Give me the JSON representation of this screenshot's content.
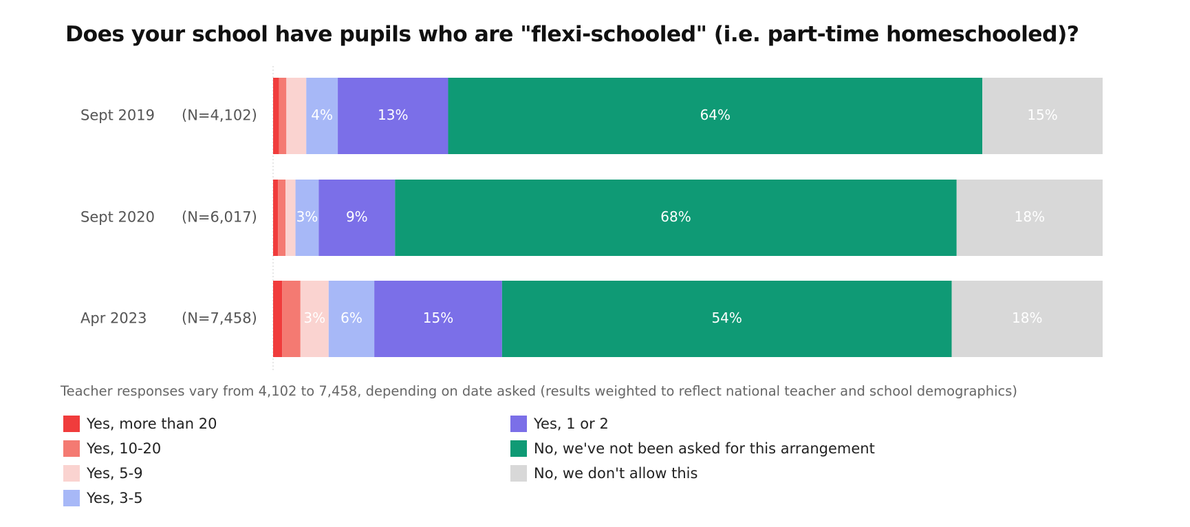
{
  "chart_data": {
    "type": "bar",
    "orientation": "horizontal",
    "stacked": true,
    "title": "Does your school have pupils who are \"flexi-schooled\" (i.e. part-time homeschooled)?",
    "note": "Teacher responses vary from 4,102 to 7,458, depending on date asked (results weighted to reflect national teacher and school demographics)",
    "categories": [
      "Sept 2019",
      "Sept 2020",
      "Apr 2023"
    ],
    "sample_sizes": [
      "(N=4,102)",
      "(N=6,017)",
      "(N=7,458)"
    ],
    "xlim": [
      0,
      100
    ],
    "grid": false,
    "legend_placement": "bottom",
    "series": [
      {
        "name": "Yes, more than 20",
        "color": "#f03c3c",
        "values": [
          0.7,
          0.6,
          1.1
        ],
        "labels": [
          "",
          "",
          ""
        ],
        "label_color": "#ffffff"
      },
      {
        "name": "Yes, 10-20",
        "color": "#f47a72",
        "values": [
          0.9,
          0.9,
          2.2
        ],
        "labels": [
          "",
          "",
          ""
        ],
        "label_color": "#ffffff"
      },
      {
        "name": "Yes, 5-9",
        "color": "#fad3d0",
        "values": [
          2.4,
          1.2,
          3.4
        ],
        "labels": [
          "",
          "",
          "3%"
        ],
        "label_color": "#ffffff"
      },
      {
        "name": "Yes, 3-5",
        "color": "#a7b8f7",
        "values": [
          3.8,
          2.8,
          5.5
        ],
        "labels": [
          "4%",
          "3%",
          "6%"
        ],
        "label_color": "#ffffff"
      },
      {
        "name": "Yes, 1 or 2",
        "color": "#7b6fe8",
        "values": [
          13.3,
          9.2,
          15.4
        ],
        "labels": [
          "13%",
          "9%",
          "15%"
        ],
        "label_color": "#ffffff"
      },
      {
        "name": "No, we've not been asked for this arrangement",
        "color": "#0f9a75",
        "values": [
          64.4,
          67.7,
          54.2
        ],
        "labels": [
          "64%",
          "68%",
          "54%"
        ],
        "label_color": "#ffffff"
      },
      {
        "name": "No, we don't allow this",
        "color": "#d8d8d8",
        "values": [
          14.5,
          17.6,
          18.2
        ],
        "labels": [
          "15%",
          "18%",
          "18%"
        ],
        "label_color": "#ffffff"
      }
    ]
  }
}
